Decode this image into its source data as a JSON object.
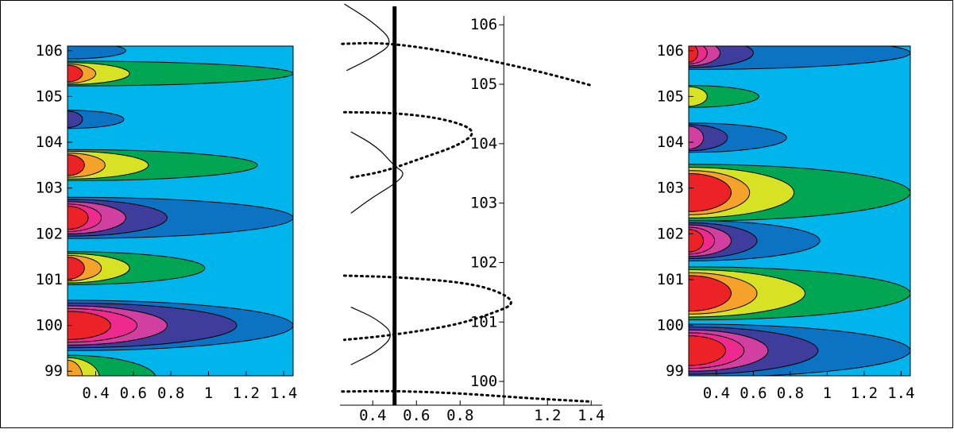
{
  "colors": {
    "frame": "#000000",
    "contour_levels": [
      "#00b4ec",
      "#0c72c2",
      "#00a651",
      "#3e3d9b",
      "#d8e224",
      "#d13fa0",
      "#f4a22a",
      "#ee2a8e",
      "#ed2227"
    ]
  },
  "chart_data": [
    {
      "id": "left-contour",
      "type": "heatmap",
      "style": "filled contour plot",
      "xlim": [
        0.25,
        1.45
      ],
      "ylim": [
        98.9,
        106.1
      ],
      "x_ticks": [
        "0.4",
        "0.6",
        "0.8",
        "1",
        "1.2",
        "1.4"
      ],
      "y_ticks": [
        "99",
        "100",
        "101",
        "102",
        "103",
        "104",
        "105",
        "106"
      ],
      "background_color": "#00b4ec",
      "lobes": [
        {
          "y": 106.0,
          "half_width": 0.18,
          "levels": [
            {
              "color": "#0c72c2",
              "x": 0.56
            }
          ]
        },
        {
          "y": 105.5,
          "half_width": 0.27,
          "levels": [
            {
              "color": "#00a651",
              "x": 1.45
            },
            {
              "color": "#d8e224",
              "x": 0.58
            },
            {
              "color": "#f4a22a",
              "x": 0.4
            },
            {
              "color": "#ed2227",
              "x": 0.33
            }
          ]
        },
        {
          "y": 104.5,
          "half_width": 0.2,
          "levels": [
            {
              "color": "#0c72c2",
              "x": 0.55
            },
            {
              "color": "#3e3d9b",
              "x": 0.33
            }
          ]
        },
        {
          "y": 103.5,
          "half_width": 0.34,
          "levels": [
            {
              "color": "#00a651",
              "x": 1.26
            },
            {
              "color": "#d8e224",
              "x": 0.68
            },
            {
              "color": "#f4a22a",
              "x": 0.45
            },
            {
              "color": "#ed2227",
              "x": 0.34
            }
          ]
        },
        {
          "y": 102.35,
          "half_width": 0.45,
          "levels": [
            {
              "color": "#0c72c2",
              "x": 1.45
            },
            {
              "color": "#3e3d9b",
              "x": 0.78
            },
            {
              "color": "#d13fa0",
              "x": 0.56
            },
            {
              "color": "#ee2a8e",
              "x": 0.43
            },
            {
              "color": "#ed2227",
              "x": 0.36
            }
          ]
        },
        {
          "y": 101.25,
          "half_width": 0.36,
          "levels": [
            {
              "color": "#00a651",
              "x": 0.98
            },
            {
              "color": "#d8e224",
              "x": 0.58
            },
            {
              "color": "#f4a22a",
              "x": 0.43
            },
            {
              "color": "#ed2227",
              "x": 0.34
            }
          ]
        },
        {
          "y": 100.0,
          "half_width": 0.55,
          "levels": [
            {
              "color": "#0c72c2",
              "x": 1.45
            },
            {
              "color": "#3e3d9b",
              "x": 1.15
            },
            {
              "color": "#d13fa0",
              "x": 0.78
            },
            {
              "color": "#ee2a8e",
              "x": 0.62
            },
            {
              "color": "#ed2227",
              "x": 0.48
            }
          ]
        },
        {
          "y": 98.85,
          "half_width": 0.5,
          "levels": [
            {
              "color": "#00a651",
              "x": 0.72
            },
            {
              "color": "#d8e224",
              "x": 0.42
            },
            {
              "color": "#f4a22a",
              "x": 0.33
            }
          ]
        }
      ]
    },
    {
      "id": "middle-curves",
      "type": "line",
      "xlim": [
        0.25,
        1.45
      ],
      "ylim": [
        99.6,
        106.15
      ],
      "x_ticks": [
        "0.4",
        "0.6",
        "0.8",
        "1.2",
        "1.4"
      ],
      "y_ticks": [
        "100",
        "101",
        "102",
        "103",
        "104",
        "105",
        "106"
      ],
      "axis_crossing": {
        "x": 1.0,
        "y": 99.6
      },
      "vertical_line_x": 0.5,
      "dotted_curves": [
        {
          "name": "upper",
          "points": [
            [
              0.26,
              105.68
            ],
            [
              0.45,
              105.7
            ],
            [
              0.7,
              105.58
            ],
            [
              1.0,
              105.35
            ],
            [
              1.2,
              105.18
            ],
            [
              1.4,
              104.98
            ]
          ]
        },
        {
          "name": "middle",
          "points": [
            [
              0.27,
              104.53
            ],
            [
              0.5,
              104.52
            ],
            [
              0.73,
              104.42
            ],
            [
              0.88,
              104.22
            ],
            [
              0.8,
              103.98
            ],
            [
              0.62,
              103.75
            ],
            [
              0.45,
              103.53
            ],
            [
              0.3,
              103.43
            ]
          ]
        },
        {
          "name": "lower",
          "points": [
            [
              0.27,
              101.78
            ],
            [
              0.55,
              101.75
            ],
            [
              0.85,
              101.65
            ],
            [
              1.0,
              101.48
            ],
            [
              1.05,
              101.3
            ],
            [
              0.95,
              101.15
            ],
            [
              0.8,
              100.97
            ],
            [
              0.62,
              100.85
            ],
            [
              0.42,
              100.75
            ],
            [
              0.27,
              100.7
            ]
          ]
        },
        {
          "name": "bottom",
          "points": [
            [
              0.26,
              99.83
            ],
            [
              0.5,
              99.84
            ],
            [
              0.8,
              99.8
            ],
            [
              1.1,
              99.72
            ],
            [
              1.4,
              99.66
            ]
          ]
        }
      ],
      "solid_curves": [
        {
          "points": [
            [
              0.27,
              106.35
            ],
            [
              0.4,
              106.05
            ],
            [
              0.5,
              105.7
            ],
            [
              0.4,
              105.45
            ],
            [
              0.28,
              105.23
            ]
          ]
        },
        {
          "points": [
            [
              0.3,
              104.2
            ],
            [
              0.42,
              103.95
            ],
            [
              0.5,
              103.62
            ],
            [
              0.55,
              103.5
            ],
            [
              0.5,
              103.32
            ],
            [
              0.4,
              103.1
            ],
            [
              0.3,
              102.83
            ]
          ]
        },
        {
          "points": [
            [
              0.3,
              101.25
            ],
            [
              0.42,
              101.05
            ],
            [
              0.5,
              100.78
            ],
            [
              0.42,
              100.5
            ],
            [
              0.3,
              100.28
            ]
          ]
        }
      ]
    },
    {
      "id": "right-contour",
      "type": "heatmap",
      "style": "filled contour plot",
      "xlim": [
        0.25,
        1.45
      ],
      "ylim": [
        98.9,
        106.1
      ],
      "x_ticks": [
        "0.4",
        "0.6",
        "0.8",
        "1",
        "1.2",
        "1.4"
      ],
      "y_ticks": [
        "99",
        "100",
        "101",
        "102",
        "103",
        "104",
        "105",
        "106"
      ],
      "background_color": "#00b4ec",
      "lobes": [
        {
          "y": 105.95,
          "half_width": 0.36,
          "levels": [
            {
              "color": "#0c72c2",
              "x": 1.45
            },
            {
              "color": "#3e3d9b",
              "x": 0.6
            },
            {
              "color": "#d13fa0",
              "x": 0.42
            },
            {
              "color": "#ee2a8e",
              "x": 0.35
            },
            {
              "color": "#ed2227",
              "x": 0.3
            }
          ]
        },
        {
          "y": 105.0,
          "half_width": 0.24,
          "levels": [
            {
              "color": "#00a651",
              "x": 0.63
            },
            {
              "color": "#d8e224",
              "x": 0.35
            }
          ]
        },
        {
          "y": 104.1,
          "half_width": 0.32,
          "levels": [
            {
              "color": "#0c72c2",
              "x": 0.78
            },
            {
              "color": "#3e3d9b",
              "x": 0.46
            },
            {
              "color": "#d13fa0",
              "x": 0.33
            }
          ]
        },
        {
          "y": 102.9,
          "half_width": 0.62,
          "levels": [
            {
              "color": "#00a651",
              "x": 1.45
            },
            {
              "color": "#d8e224",
              "x": 0.82
            },
            {
              "color": "#f4a22a",
              "x": 0.58
            },
            {
              "color": "#ed2227",
              "x": 0.48
            }
          ]
        },
        {
          "y": 101.85,
          "half_width": 0.44,
          "levels": [
            {
              "color": "#0c72c2",
              "x": 0.96
            },
            {
              "color": "#3e3d9b",
              "x": 0.62
            },
            {
              "color": "#d13fa0",
              "x": 0.48
            },
            {
              "color": "#ee2a8e",
              "x": 0.39
            },
            {
              "color": "#ed2227",
              "x": 0.33
            }
          ]
        },
        {
          "y": 100.7,
          "half_width": 0.58,
          "levels": [
            {
              "color": "#00a651",
              "x": 1.45
            },
            {
              "color": "#d8e224",
              "x": 0.88
            },
            {
              "color": "#f4a22a",
              "x": 0.62
            },
            {
              "color": "#ed2227",
              "x": 0.48
            }
          ]
        },
        {
          "y": 99.45,
          "half_width": 0.58,
          "levels": [
            {
              "color": "#0c72c2",
              "x": 1.45
            },
            {
              "color": "#3e3d9b",
              "x": 0.95
            },
            {
              "color": "#d13fa0",
              "x": 0.68
            },
            {
              "color": "#ee2a8e",
              "x": 0.55
            },
            {
              "color": "#ed2227",
              "x": 0.45
            }
          ]
        }
      ]
    }
  ]
}
